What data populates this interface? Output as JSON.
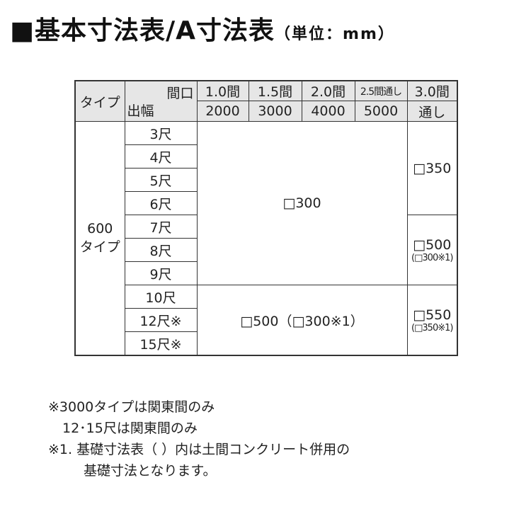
{
  "title": {
    "main": "■基本寸法表/A寸法表",
    "unit": "（単位：mm）"
  },
  "table": {
    "type_header": "タイプ",
    "diag_top": "間口",
    "diag_bottom": "出幅",
    "columns": [
      {
        "top": "1.0間",
        "bottom": "2000"
      },
      {
        "top": "1.5間",
        "bottom": "3000"
      },
      {
        "top": "2.0間",
        "bottom": "4000"
      },
      {
        "top": "2.5間通し",
        "bottom": "5000"
      },
      {
        "top": "3.0間",
        "bottom": "通し"
      }
    ],
    "type_value_line1": "600",
    "type_value_line2": "タイプ",
    "rows": [
      "3尺",
      "4尺",
      "5尺",
      "6尺",
      "7尺",
      "8尺",
      "9尺",
      "10尺",
      "12尺※",
      "15尺※"
    ],
    "block_a": "□300",
    "block_b": "□500（□300※1）",
    "col5_a": "□350",
    "col5_b": "□500",
    "col5_b_sub": "(□300※1)",
    "col5_c": "□550",
    "col5_c_sub": "(□350※1)"
  },
  "notes": [
    "※3000タイプは関東間のみ",
    "12･15尺は関東間のみ",
    "※1. 基礎寸法表（ ）内は土間コンクリート併用の",
    "基礎寸法となります。"
  ]
}
